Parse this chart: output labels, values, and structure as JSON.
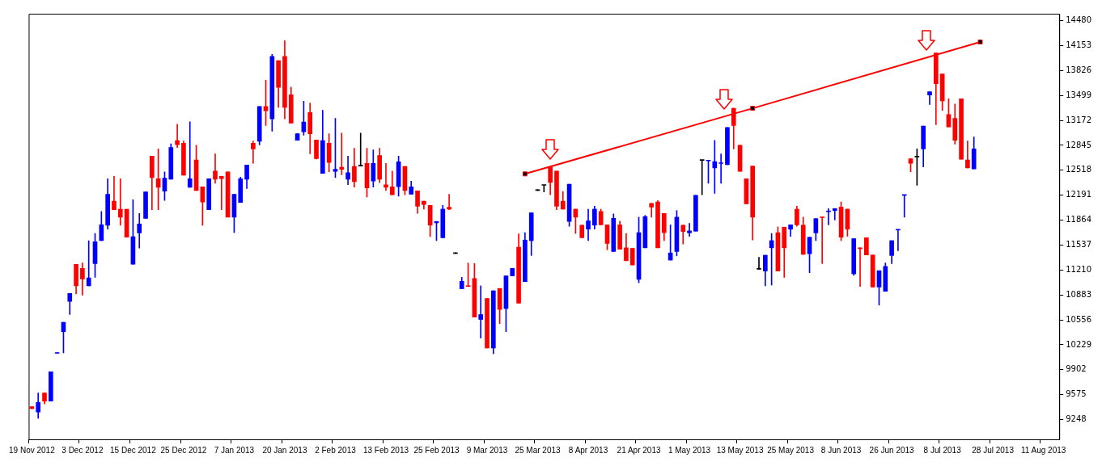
{
  "chart_data": {
    "type": "candlestick",
    "categories": [
      "19 Nov 2012",
      null,
      null,
      null,
      null,
      null,
      null,
      null,
      "3 Dec 2012",
      null,
      null,
      null,
      null,
      null,
      null,
      null,
      "15 Dec 2012",
      null,
      null,
      null,
      null,
      null,
      null,
      null,
      "25 Dec 2012",
      null,
      null,
      null,
      null,
      null,
      null,
      null,
      "7 Jan 2013",
      null,
      null,
      null,
      null,
      null,
      null,
      null,
      "20 Jan 2013",
      null,
      null,
      null,
      null,
      null,
      null,
      null,
      "2 Feb 2013",
      null,
      null,
      null,
      null,
      null,
      null,
      null,
      "13 Feb 2013",
      null,
      null,
      null,
      null,
      null,
      null,
      null,
      "25 Feb 2013",
      null,
      null,
      null,
      null,
      null,
      null,
      null,
      "9 Mar 2013",
      null,
      null,
      null,
      null,
      null,
      null,
      null,
      "25 Mar 2013",
      null,
      null,
      null,
      null,
      null,
      null,
      null,
      "8 Apr 2013",
      null,
      null,
      null,
      null,
      null,
      null,
      null,
      "21 Apr 2013",
      null,
      null,
      null,
      null,
      null,
      null,
      null,
      "1 May 2013",
      null,
      null,
      null,
      null,
      null,
      null,
      null,
      "13 May 2013",
      null,
      null,
      null,
      null,
      null,
      null,
      null,
      "25 May 2013",
      null,
      null,
      null,
      null,
      null,
      null,
      null,
      "8 Jun 2013",
      null,
      null,
      null,
      null,
      null,
      null,
      null,
      "26 Jun 2013",
      null,
      null,
      null,
      null,
      null,
      null,
      null,
      "8 Jul 2013",
      null,
      null,
      null,
      null,
      null,
      null,
      null,
      "28 Jul 2013",
      null,
      null,
      null,
      null,
      null,
      null,
      null,
      "11 Aug 2013",
      null,
      null
    ],
    "ohlc": [
      [
        9417,
        9420,
        9390,
        9394
      ],
      [
        9349,
        9597,
        9267,
        9473
      ],
      [
        9597,
        9597,
        9454,
        9492
      ],
      [
        9492,
        9875,
        9492,
        9875
      ],
      [
        10118,
        10128,
        10118,
        10125
      ],
      [
        10401,
        10525,
        10123,
        10525
      ],
      [
        10799,
        10904,
        10626,
        10904
      ],
      [
        11283,
        11283,
        10896,
        11002
      ],
      [
        11231,
        11302,
        10882,
        11092
      ],
      [
        11002,
        11595,
        11002,
        11107
      ],
      [
        11295,
        11689,
        11114,
        11580
      ],
      [
        11595,
        11978,
        11595,
        11802
      ],
      [
        11798,
        12407,
        11746,
        12204
      ],
      [
        12114,
        12437,
        12001,
        12001
      ],
      [
        12008,
        12407,
        11798,
        11903
      ],
      [
        12008,
        12008,
        11640,
        11640
      ],
      [
        11287,
        12132,
        11287,
        11648
      ],
      [
        11697,
        11952,
        11498,
        11813
      ],
      [
        11888,
        12234,
        11888,
        12234
      ],
      [
        12703,
        12703,
        12001,
        12422
      ],
      [
        12407,
        12797,
        12001,
        12294
      ],
      [
        12245,
        12497,
        12121,
        12414
      ],
      [
        12399,
        12865,
        12399,
        12816
      ],
      [
        12906,
        13120,
        12816,
        12853
      ],
      [
        12872,
        12902,
        12452,
        12452
      ],
      [
        12294,
        13154,
        12294,
        12407
      ],
      [
        12654,
        12846,
        12253,
        12253
      ],
      [
        12301,
        12301,
        11798,
        12102
      ],
      [
        12001,
        12407,
        12001,
        12407
      ],
      [
        12508,
        12733,
        12347,
        12399
      ],
      [
        12437,
        12437,
        12001,
        12407
      ],
      [
        12497,
        12497,
        11903,
        11903
      ],
      [
        11903,
        12204,
        11700,
        12204
      ],
      [
        12095,
        12429,
        12095,
        12407
      ],
      [
        12399,
        12587,
        12279,
        12587
      ],
      [
        12872,
        12902,
        12609,
        12797
      ],
      [
        12899,
        13353,
        12850,
        13353
      ],
      [
        13353,
        13699,
        13105,
        13297
      ],
      [
        13191,
        14037,
        13030,
        14010
      ],
      [
        13954,
        13954,
        13342,
        13605
      ],
      [
        14010,
        14217,
        13191,
        13342
      ],
      [
        13507,
        13608,
        13135,
        13135
      ],
      [
        12910,
        13000,
        12910,
        12996
      ],
      [
        13022,
        13424,
        12977,
        13150
      ],
      [
        13274,
        13398,
        12733,
        12996
      ],
      [
        12914,
        12914,
        12665,
        12669
      ],
      [
        12478,
        13304,
        12478,
        12906
      ],
      [
        12872,
        12996,
        12497,
        12621
      ],
      [
        12504,
        13199,
        12421,
        12531
      ],
      [
        12557,
        13004,
        12459,
        12531
      ],
      [
        12399,
        12703,
        12328,
        12486
      ],
      [
        12568,
        12805,
        12298,
        12369
      ],
      [
        12572,
        13004,
        12572,
        12572
      ],
      [
        12609,
        12805,
        12166,
        12286
      ],
      [
        12376,
        12786,
        12298,
        12609
      ],
      [
        12711,
        12805,
        12354,
        12399
      ],
      [
        12328,
        12609,
        12253,
        12294
      ],
      [
        12301,
        12508,
        12196,
        12196
      ],
      [
        12301,
        12703,
        12177,
        12628
      ],
      [
        12568,
        12568,
        12196,
        12253
      ],
      [
        12204,
        12376,
        12204,
        12301
      ],
      [
        12249,
        12249,
        11952,
        12046
      ],
      [
        12114,
        12114,
        12008,
        12069
      ],
      [
        12057,
        12057,
        11648,
        11798
      ],
      [
        11828,
        11847,
        11595,
        11847
      ],
      [
        11633,
        12057,
        11633,
        12008
      ],
      [
        12034,
        12204,
        12001,
        12008
      ],
      [
        11426,
        11426,
        11426,
        11426
      ],
      [
        10964,
        11114,
        10964,
        11062
      ],
      [
        11002,
        11302,
        10994,
        10994
      ],
      [
        11099,
        11295,
        10592,
        10592
      ],
      [
        10562,
        11002,
        10318,
        10626
      ],
      [
        10837,
        10837,
        10187,
        10187
      ],
      [
        10187,
        10938,
        10112,
        10938
      ],
      [
        10968,
        10968,
        10506,
        10694
      ],
      [
        10705,
        11133,
        10401,
        11133
      ],
      [
        11133,
        11231,
        11133,
        11231
      ],
      [
        11509,
        11685,
        10776,
        10776
      ],
      [
        11058,
        11700,
        11058,
        11603
      ],
      [
        11595,
        11960,
        11400,
        11960
      ],
      [
        12253,
        12253,
        12253,
        12253
      ],
      [
        12320,
        12320,
        12234,
        12320
      ],
      [
        12561,
        12561,
        12196,
        12358
      ],
      [
        12508,
        12508,
        12001,
        12046
      ],
      [
        12114,
        12241,
        12008,
        12008
      ],
      [
        11847,
        12335,
        11783,
        12335
      ],
      [
        12008,
        12008,
        11689,
        11903
      ],
      [
        11798,
        11798,
        11633,
        11633
      ],
      [
        11746,
        12008,
        11595,
        11854
      ],
      [
        11798,
        12046,
        11746,
        12008
      ],
      [
        11978,
        12008,
        11802,
        11802
      ],
      [
        11802,
        11802,
        11475,
        11558
      ],
      [
        11453,
        11945,
        11453,
        11888
      ],
      [
        11802,
        11851,
        11483,
        11483
      ],
      [
        11501,
        11689,
        11332,
        11332
      ],
      [
        11494,
        11494,
        11276,
        11276
      ],
      [
        11088,
        11903,
        11043,
        11700
      ],
      [
        11501,
        11926,
        11501,
        11911
      ],
      [
        12084,
        12084,
        11903,
        12035
      ],
      [
        12102,
        12121,
        11501,
        11501
      ],
      [
        11952,
        11952,
        11595,
        11700
      ],
      [
        11340,
        11802,
        11340,
        11434
      ],
      [
        11453,
        11990,
        11396,
        11903
      ],
      [
        11798,
        11798,
        11550,
        11715
      ],
      [
        11697,
        11821,
        11652,
        11723
      ],
      [
        11719,
        12189,
        11719,
        12189
      ],
      [
        12647,
        12647,
        12196,
        12647
      ],
      [
        12640,
        12647,
        12346,
        12647
      ],
      [
        12549,
        12910,
        12215,
        12632
      ],
      [
        12606,
        12733,
        12346,
        12613
      ],
      [
        12591,
        13079,
        12591,
        13079
      ],
      [
        13331,
        13331,
        12797,
        13105
      ],
      [
        12846,
        12846,
        12504,
        12504
      ],
      [
        12407,
        12407,
        12076,
        12076
      ],
      [
        12572,
        12572,
        11603,
        11903
      ],
      [
        11220,
        11377,
        11220,
        11220
      ],
      [
        11197,
        11404,
        11002,
        11404
      ],
      [
        11501,
        11689,
        11013,
        11595
      ],
      [
        11700,
        11775,
        11197,
        11197
      ],
      [
        11772,
        11772,
        11114,
        11501
      ],
      [
        11745,
        11802,
        11652,
        11802
      ],
      [
        12008,
        12046,
        11783,
        11802
      ],
      [
        11798,
        11903,
        11415,
        11415
      ],
      [
        11423,
        11640,
        11175,
        11640
      ],
      [
        11697,
        11884,
        11595,
        11884
      ],
      [
        11903,
        11903,
        11295,
        11896
      ],
      [
        11974,
        12016,
        11802,
        11982
      ],
      [
        11990,
        12016,
        11866,
        12016
      ],
      [
        12035,
        12102,
        11595,
        11640
      ],
      [
        12008,
        12008,
        11652,
        11745
      ],
      [
        11160,
        11621,
        11140,
        11621
      ],
      [
        11501,
        11501,
        10994,
        11490
      ],
      [
        11633,
        11633,
        11407,
        11407
      ],
      [
        11407,
        11407,
        10987,
        10987
      ],
      [
        10987,
        11201,
        10750,
        11201
      ],
      [
        10931,
        11302,
        10931,
        11257
      ],
      [
        11400,
        11595,
        11295,
        11595
      ],
      [
        11734,
        11738,
        11464,
        11738
      ],
      [
        12189,
        12196,
        11903,
        12196
      ],
      [
        12669,
        12669,
        12497,
        12609
      ],
      [
        12692,
        12797,
        12320,
        12692
      ],
      [
        12797,
        13098,
        12561,
        13098
      ],
      [
        13503,
        13548,
        13379,
        13548
      ],
      [
        14055,
        14055,
        13116,
        13653
      ],
      [
        13781,
        13781,
        13304,
        13428
      ],
      [
        13248,
        13454,
        13086,
        13086
      ],
      [
        13199,
        13387,
        12861,
        12910
      ],
      [
        13454,
        13454,
        12662,
        12662
      ],
      [
        12654,
        12902,
        12549,
        12549
      ],
      [
        12534,
        12955,
        12534,
        12797
      ],
      null,
      null,
      null,
      null,
      null,
      null,
      null,
      null,
      null,
      null,
      null,
      null,
      null
    ],
    "colors": [
      "#ff0000",
      "#0000ff",
      "#ff0000",
      "#0000ff",
      "#0000ff",
      "#0000ff",
      "#0000ff",
      "#ff0000",
      "#ff0000",
      "#0000ff",
      "#0000ff",
      "#0000ff",
      "#0000ff",
      "#ff0000",
      "#ff0000",
      "#ff0000",
      "#0000ff",
      "#0000ff",
      "#0000ff",
      "#ff0000",
      "#ff0000",
      "#0000ff",
      "#0000ff",
      "#ff0000",
      "#ff0000",
      "#0000ff",
      "#ff0000",
      "#ff0000",
      "#0000ff",
      "#ff0000",
      "#ff0000",
      "#ff0000",
      "#0000ff",
      "#0000ff",
      "#0000ff",
      "#ff0000",
      "#0000ff",
      "#ff0000",
      "#0000ff",
      "#ff0000",
      "#ff0000",
      "#ff0000",
      "#0000ff",
      "#0000ff",
      "#ff0000",
      "#ff0000",
      "#0000ff",
      "#ff0000",
      "#0000ff",
      "#ff0000",
      "#0000ff",
      "#ff0000",
      "#000000",
      "#ff0000",
      "#0000ff",
      "#ff0000",
      "#ff0000",
      "#ff0000",
      "#0000ff",
      "#ff0000",
      "#0000ff",
      "#ff0000",
      "#ff0000",
      "#ff0000",
      "#0000ff",
      "#0000ff",
      "#ff0000",
      "#000000",
      "#0000ff",
      "#ff0000",
      "#ff0000",
      "#0000ff",
      "#ff0000",
      "#0000ff",
      "#ff0000",
      "#0000ff",
      "#0000ff",
      "#ff0000",
      "#0000ff",
      "#0000ff",
      "#000000",
      "#000000",
      "#ff0000",
      "#ff0000",
      "#ff0000",
      "#0000ff",
      "#ff0000",
      "#ff0000",
      "#0000ff",
      "#0000ff",
      "#ff0000",
      "#ff0000",
      "#0000ff",
      "#ff0000",
      "#ff0000",
      "#ff0000",
      "#0000ff",
      "#0000ff",
      "#ff0000",
      "#ff0000",
      "#ff0000",
      "#0000ff",
      "#0000ff",
      "#ff0000",
      "#0000ff",
      "#0000ff",
      "#000000",
      "#0000ff",
      "#0000ff",
      "#0000ff",
      "#0000ff",
      "#ff0000",
      "#ff0000",
      "#ff0000",
      "#ff0000",
      "#000000",
      "#0000ff",
      "#0000ff",
      "#ff0000",
      "#ff0000",
      "#0000ff",
      "#ff0000",
      "#ff0000",
      "#0000ff",
      "#0000ff",
      "#ff0000",
      "#0000ff",
      "#0000ff",
      "#ff0000",
      "#ff0000",
      "#0000ff",
      "#ff0000",
      "#ff0000",
      "#ff0000",
      "#0000ff",
      "#0000ff",
      "#0000ff",
      "#0000ff",
      "#0000ff",
      "#ff0000",
      "#000000",
      "#0000ff",
      "#0000ff",
      "#ff0000",
      "#ff0000",
      "#ff0000",
      "#ff0000",
      "#ff0000",
      "#ff0000",
      "#0000ff",
      null,
      null,
      null,
      null,
      null,
      null,
      null,
      null,
      null,
      null,
      null,
      null,
      null
    ],
    "series": [
      {
        "type": "line",
        "color": "#ff0000",
        "marker": "square",
        "line_style": "solid",
        "values": [
          null,
          null,
          null,
          null,
          null,
          null,
          null,
          null,
          null,
          null,
          null,
          null,
          null,
          null,
          null,
          null,
          null,
          null,
          null,
          null,
          null,
          null,
          null,
          null,
          null,
          null,
          null,
          null,
          null,
          null,
          null,
          null,
          null,
          null,
          null,
          null,
          null,
          null,
          null,
          null,
          null,
          null,
          null,
          null,
          null,
          null,
          null,
          null,
          null,
          null,
          null,
          null,
          null,
          null,
          null,
          null,
          null,
          null,
          null,
          null,
          null,
          null,
          null,
          null,
          null,
          null,
          null,
          null,
          null,
          null,
          null,
          null,
          null,
          null,
          null,
          null,
          null,
          null,
          12470,
          null,
          null,
          null,
          null,
          null,
          null,
          null,
          null,
          null,
          null,
          null,
          null,
          null,
          null,
          null,
          null,
          null,
          null,
          null,
          null,
          null,
          null,
          null,
          null,
          null,
          null,
          null,
          null,
          null,
          null,
          null,
          null,
          null,
          null,
          null,
          13330,
          null,
          null,
          null,
          null,
          null,
          null,
          null,
          null,
          null,
          null,
          null,
          null,
          null,
          null,
          null,
          null,
          null,
          null,
          null,
          null,
          null,
          null,
          null,
          null,
          null,
          null,
          null,
          null,
          null,
          null,
          null,
          null,
          null,
          null,
          null,
          14200,
          null,
          null,
          null,
          null,
          null,
          null,
          null,
          null,
          null,
          null,
          null,
          null
        ]
      }
    ],
    "ylim": [
      8990,
      14570
    ],
    "yticks": [
      9248,
      9575,
      9902,
      10229,
      10556,
      10883,
      11210,
      11537,
      11864,
      12191,
      12518,
      12845,
      13172,
      13499,
      13826,
      14153,
      14480
    ],
    "grid": false,
    "legend": false
  }
}
